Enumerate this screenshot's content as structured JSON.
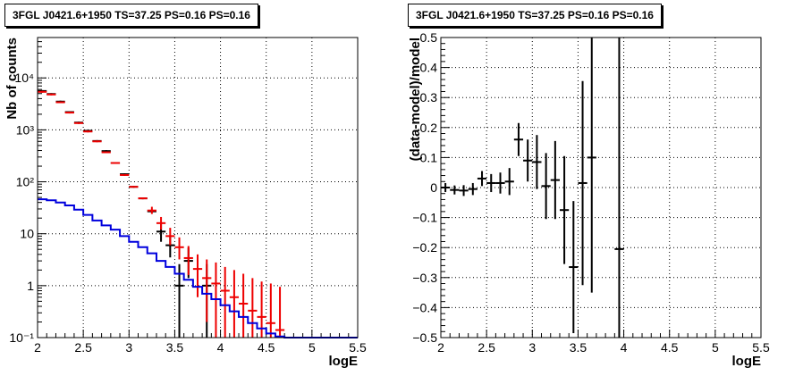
{
  "chart_data": [
    {
      "type": "line",
      "title": "3FGL J0421.6+1950 TS=37.25 PS=0.16 PS=0.16",
      "xlabel": "logE",
      "ylabel": "Nb of counts",
      "xlim": [
        2,
        5.5
      ],
      "ylim": [
        0.1,
        60000
      ],
      "yscale": "log",
      "grid": true,
      "xticks": [
        "2",
        "2.5",
        "3",
        "3.5",
        "4",
        "4.5",
        "5",
        "5.5"
      ],
      "yticks": [
        {
          "value": 0.1,
          "label": "10⁻¹"
        },
        {
          "value": 1,
          "label": "1"
        },
        {
          "value": 10,
          "label": "10"
        },
        {
          "value": 100,
          "label": "10²"
        },
        {
          "value": 1000,
          "label": "10³"
        },
        {
          "value": 10000,
          "label": "10⁴"
        }
      ],
      "series": [
        {
          "color": "#000000",
          "style": "errorbar",
          "points": [
            {
              "x": 2.05,
              "y": 5600
            },
            {
              "x": 2.15,
              "y": 4900
            },
            {
              "x": 2.25,
              "y": 3500
            },
            {
              "x": 2.35,
              "y": 2200
            },
            {
              "x": 2.45,
              "y": 1380
            },
            {
              "x": 2.55,
              "y": 960
            },
            {
              "x": 2.65,
              "y": 610
            },
            {
              "x": 2.75,
              "y": 390
            },
            {
              "x": 2.85,
              "y": 230
            },
            {
              "x": 2.95,
              "y": 140
            },
            {
              "x": 3.05,
              "y": 80
            },
            {
              "x": 3.15,
              "y": 48
            },
            {
              "x": 3.25,
              "y": 27
            },
            {
              "x": 3.35,
              "y": 11,
              "lo": 7,
              "hi": 16
            },
            {
              "x": 3.45,
              "y": 6,
              "lo": 3.5,
              "hi": 9
            },
            {
              "x": 3.55,
              "y": 1,
              "lo": 0.1,
              "hi": 2.6
            },
            {
              "x": 3.65,
              "y": 3,
              "lo": 1.4,
              "hi": 5.4
            },
            {
              "x": 3.85,
              "y": 1,
              "lo": 0.1,
              "hi": 2.6
            }
          ]
        },
        {
          "color": "#ee0000",
          "style": "errorbar",
          "points": [
            {
              "x": 2.05,
              "y": 5400
            },
            {
              "x": 2.15,
              "y": 4800
            },
            {
              "x": 2.25,
              "y": 3400
            },
            {
              "x": 2.35,
              "y": 2150
            },
            {
              "x": 2.45,
              "y": 1350
            },
            {
              "x": 2.55,
              "y": 930
            },
            {
              "x": 2.65,
              "y": 600
            },
            {
              "x": 2.75,
              "y": 370
            },
            {
              "x": 2.85,
              "y": 230
            },
            {
              "x": 2.95,
              "y": 135
            },
            {
              "x": 3.05,
              "y": 80
            },
            {
              "x": 3.15,
              "y": 48
            },
            {
              "x": 3.25,
              "y": 28,
              "lo": 24,
              "hi": 33
            },
            {
              "x": 3.35,
              "y": 16,
              "lo": 12,
              "hi": 21
            },
            {
              "x": 3.45,
              "y": 9,
              "lo": 6,
              "hi": 13
            },
            {
              "x": 3.55,
              "y": 5.5,
              "lo": 3.2,
              "hi": 8.5
            },
            {
              "x": 3.65,
              "y": 3.4,
              "lo": 1.6,
              "hi": 5.8
            },
            {
              "x": 3.75,
              "y": 2.1,
              "lo": 0.6,
              "hi": 4
            },
            {
              "x": 3.85,
              "y": 1.4,
              "lo": 0.2,
              "hi": 3.2
            },
            {
              "x": 3.95,
              "y": 1.1,
              "lo": 0.1,
              "hi": 2.8
            },
            {
              "x": 4.05,
              "y": 0.8,
              "lo": 0.1,
              "hi": 2.3
            },
            {
              "x": 4.15,
              "y": 0.6,
              "lo": 0.1,
              "hi": 2
            },
            {
              "x": 4.25,
              "y": 0.45,
              "lo": 0.1,
              "hi": 1.7
            },
            {
              "x": 4.35,
              "y": 0.33,
              "lo": 0.1,
              "hi": 1.4
            },
            {
              "x": 4.45,
              "y": 0.25,
              "lo": 0.1,
              "hi": 1.2
            },
            {
              "x": 4.55,
              "y": 0.19,
              "lo": 0.1,
              "hi": 1.1
            },
            {
              "x": 4.65,
              "y": 0.14,
              "lo": 0.1,
              "hi": 0.95
            }
          ]
        },
        {
          "color": "#0000dd",
          "style": "step",
          "edges": [
            2.0,
            2.1,
            2.2,
            2.3,
            2.4,
            2.5,
            2.6,
            2.7,
            2.8,
            2.9,
            3.0,
            3.1,
            3.2,
            3.3,
            3.4,
            3.5,
            3.6,
            3.7,
            3.8,
            3.9,
            4.0,
            4.1,
            4.2,
            4.3,
            4.4,
            4.5,
            4.6,
            4.7,
            5.5
          ],
          "values": [
            46,
            44,
            40,
            35,
            29,
            23,
            18,
            14.5,
            12,
            9,
            7,
            5.5,
            4.2,
            3,
            2.3,
            1.7,
            1.3,
            0.95,
            0.7,
            0.55,
            0.42,
            0.32,
            0.25,
            0.19,
            0.15,
            0.12,
            0.105,
            0.1
          ]
        }
      ]
    },
    {
      "type": "scatter",
      "title": "3FGL J0421.6+1950 TS=37.25 PS=0.16 PS=0.16",
      "xlabel": "logE",
      "ylabel": "(data-model)/model",
      "xlim": [
        2,
        5.5
      ],
      "ylim": [
        -0.5,
        0.5
      ],
      "grid": true,
      "xticks": [
        "2",
        "2.5",
        "3",
        "3.5",
        "4",
        "4.5",
        "5",
        "5.5"
      ],
      "yticks": [
        "−0.5",
        "−0.4",
        "−0.3",
        "−0.2",
        "−0.1",
        "0",
        "0.1",
        "0.2",
        "0.3",
        "0.4",
        "0.5"
      ],
      "series": [
        {
          "color": "#000000",
          "style": "errorbar",
          "points": [
            {
              "x": 2.05,
              "y": 0.0,
              "err": 0.015
            },
            {
              "x": 2.15,
              "y": -0.008,
              "err": 0.015
            },
            {
              "x": 2.25,
              "y": -0.01,
              "err": 0.018
            },
            {
              "x": 2.35,
              "y": -0.005,
              "err": 0.02
            },
            {
              "x": 2.45,
              "y": 0.03,
              "err": 0.025
            },
            {
              "x": 2.55,
              "y": 0.015,
              "err": 0.03
            },
            {
              "x": 2.65,
              "y": 0.015,
              "err": 0.035
            },
            {
              "x": 2.75,
              "y": 0.02,
              "err": 0.045
            },
            {
              "x": 2.85,
              "y": 0.16,
              "err": 0.055
            },
            {
              "x": 2.95,
              "y": 0.09,
              "err": 0.07
            },
            {
              "x": 3.05,
              "y": 0.085,
              "err": 0.09
            },
            {
              "x": 3.15,
              "y": 0.005,
              "err": 0.11
            },
            {
              "x": 3.25,
              "y": 0.025,
              "err": 0.13
            },
            {
              "x": 3.35,
              "y": -0.075,
              "err": 0.18
            },
            {
              "x": 3.45,
              "y": -0.265,
              "err": 0.22
            },
            {
              "x": 3.55,
              "y": 0.015,
              "err": 0.34
            },
            {
              "x": 3.65,
              "y": 0.1,
              "err": 0.45
            },
            {
              "x": 3.95,
              "y": -0.205,
              "err": 0.8
            }
          ]
        }
      ]
    }
  ]
}
